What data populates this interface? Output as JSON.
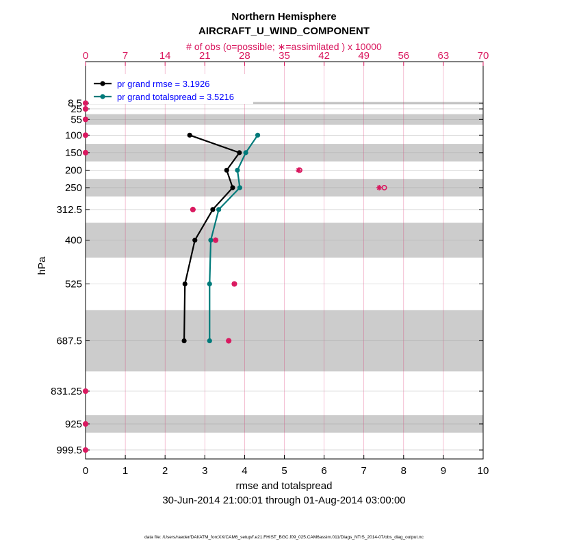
{
  "chart_data": {
    "type": "line",
    "title": "Northern Hemisphere",
    "subtitle": "AIRCRAFT_U_WIND_COMPONENT",
    "top_axis_label": "# of obs (o=possible; ∗=assimilated ) x 10000",
    "top_ticks": [
      0,
      7,
      14,
      21,
      28,
      35,
      42,
      49,
      56,
      63,
      70
    ],
    "top_xlim": [
      0,
      70
    ],
    "xlabel": "rmse and totalspread",
    "x_ticks": [
      0,
      1,
      2,
      3,
      4,
      5,
      6,
      7,
      8,
      9,
      10
    ],
    "xlim": [
      0,
      10
    ],
    "ylabel": "hPa",
    "y_levels": [
      8.5,
      25,
      55,
      100,
      150,
      200,
      250,
      312.5,
      400,
      525,
      687.5,
      831.25,
      925,
      999.5
    ],
    "y_tick_labels": [
      "8.5",
      "25",
      "55",
      "100",
      "150",
      "200",
      "250",
      "312.5",
      "400",
      "525",
      "687.5",
      "831.25",
      "925",
      "999.5"
    ],
    "ylim": [
      -110,
      1025
    ],
    "grid": true,
    "legend_position": "top-left",
    "colors": {
      "rmse": "#000000",
      "spread": "#007a7a",
      "obs": "#d9175e",
      "band": "#cccccc",
      "legend_text": "#0000ff"
    },
    "bands": [
      [
        5,
        12
      ],
      [
        40,
        70
      ],
      [
        125,
        175
      ],
      [
        225,
        275
      ],
      [
        350,
        450
      ],
      [
        600,
        775
      ],
      [
        900,
        950
      ]
    ],
    "series": [
      {
        "name": "rmse",
        "legend_label": "pr grand rmse = 3.1926",
        "levels": [
          100,
          150,
          200,
          250,
          312.5,
          400,
          525,
          687.5
        ],
        "values": [
          2.62,
          3.87,
          3.55,
          3.7,
          3.2,
          2.75,
          2.5,
          2.48
        ]
      },
      {
        "name": "totalspread",
        "legend_label": "pr grand totalspread = 3.5216",
        "levels": [
          100,
          150,
          200,
          250,
          312.5,
          400,
          525,
          687.5
        ],
        "values": [
          4.33,
          4.03,
          3.82,
          3.88,
          3.35,
          3.15,
          3.12,
          3.12
        ]
      }
    ],
    "obs_possible": {
      "levels": [
        8.5,
        25,
        55,
        100,
        150,
        200,
        250,
        312.5,
        400,
        525,
        687.5,
        831.25,
        925,
        999.5
      ],
      "values": [
        0,
        0,
        0,
        0,
        0,
        37.7,
        52.6,
        18.9,
        22.9,
        26.2,
        25.2,
        0,
        0,
        0
      ]
    },
    "obs_assimilated": {
      "levels": [
        8.5,
        25,
        55,
        100,
        150,
        200,
        250,
        312.5,
        400,
        525,
        687.5,
        831.25,
        925,
        999.5
      ],
      "values": [
        0,
        0,
        0,
        0,
        0,
        37.5,
        51.7,
        18.9,
        22.9,
        26.2,
        25.2,
        0,
        0,
        0
      ]
    },
    "date_range": "30-Jun-2014 21:00:01 through 01-Aug-2014 03:00:00",
    "footnote": "data file: /Users/raeder/DAI/ATM_forcXX/CAM6_setup/f.e21.FHIST_BGC.f09_025.CAM6assim.011/Diags_NTrS_2014-07/obs_diag_output.nc"
  }
}
